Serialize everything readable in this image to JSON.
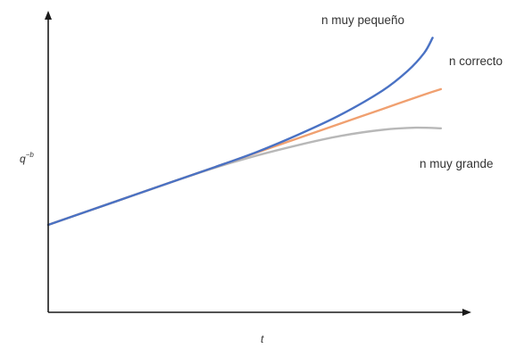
{
  "chart_data": {
    "type": "line",
    "xlabel": "t",
    "ylabel": {
      "base": "q",
      "exponent": "−b"
    },
    "grid": false,
    "xlim": [
      0,
      10
    ],
    "ylim": [
      0,
      10
    ],
    "series": [
      {
        "name": "n muy pequeño",
        "color": "#4a72c4",
        "x": [
          0,
          1,
          2,
          3,
          4,
          5,
          6,
          7,
          8,
          8.6,
          9.0,
          9.2
        ],
        "y": [
          2.9,
          3.38,
          3.86,
          4.34,
          4.82,
          5.32,
          5.9,
          6.55,
          7.35,
          8.0,
          8.6,
          9.1
        ]
      },
      {
        "name": "n correcto",
        "color": "#f0a070",
        "x": [
          0,
          1,
          2,
          3,
          4,
          5,
          6,
          7,
          8,
          9,
          9.4
        ],
        "y": [
          2.9,
          3.38,
          3.86,
          4.34,
          4.82,
          5.3,
          5.78,
          6.26,
          6.74,
          7.22,
          7.4
        ]
      },
      {
        "name": "n muy grande",
        "color": "#b8b8b8",
        "x": [
          0,
          1,
          2,
          3,
          4,
          5,
          6,
          7,
          8,
          8.8,
          9.4
        ],
        "y": [
          2.9,
          3.38,
          3.86,
          4.34,
          4.8,
          5.2,
          5.55,
          5.85,
          6.05,
          6.12,
          6.1
        ]
      }
    ]
  }
}
